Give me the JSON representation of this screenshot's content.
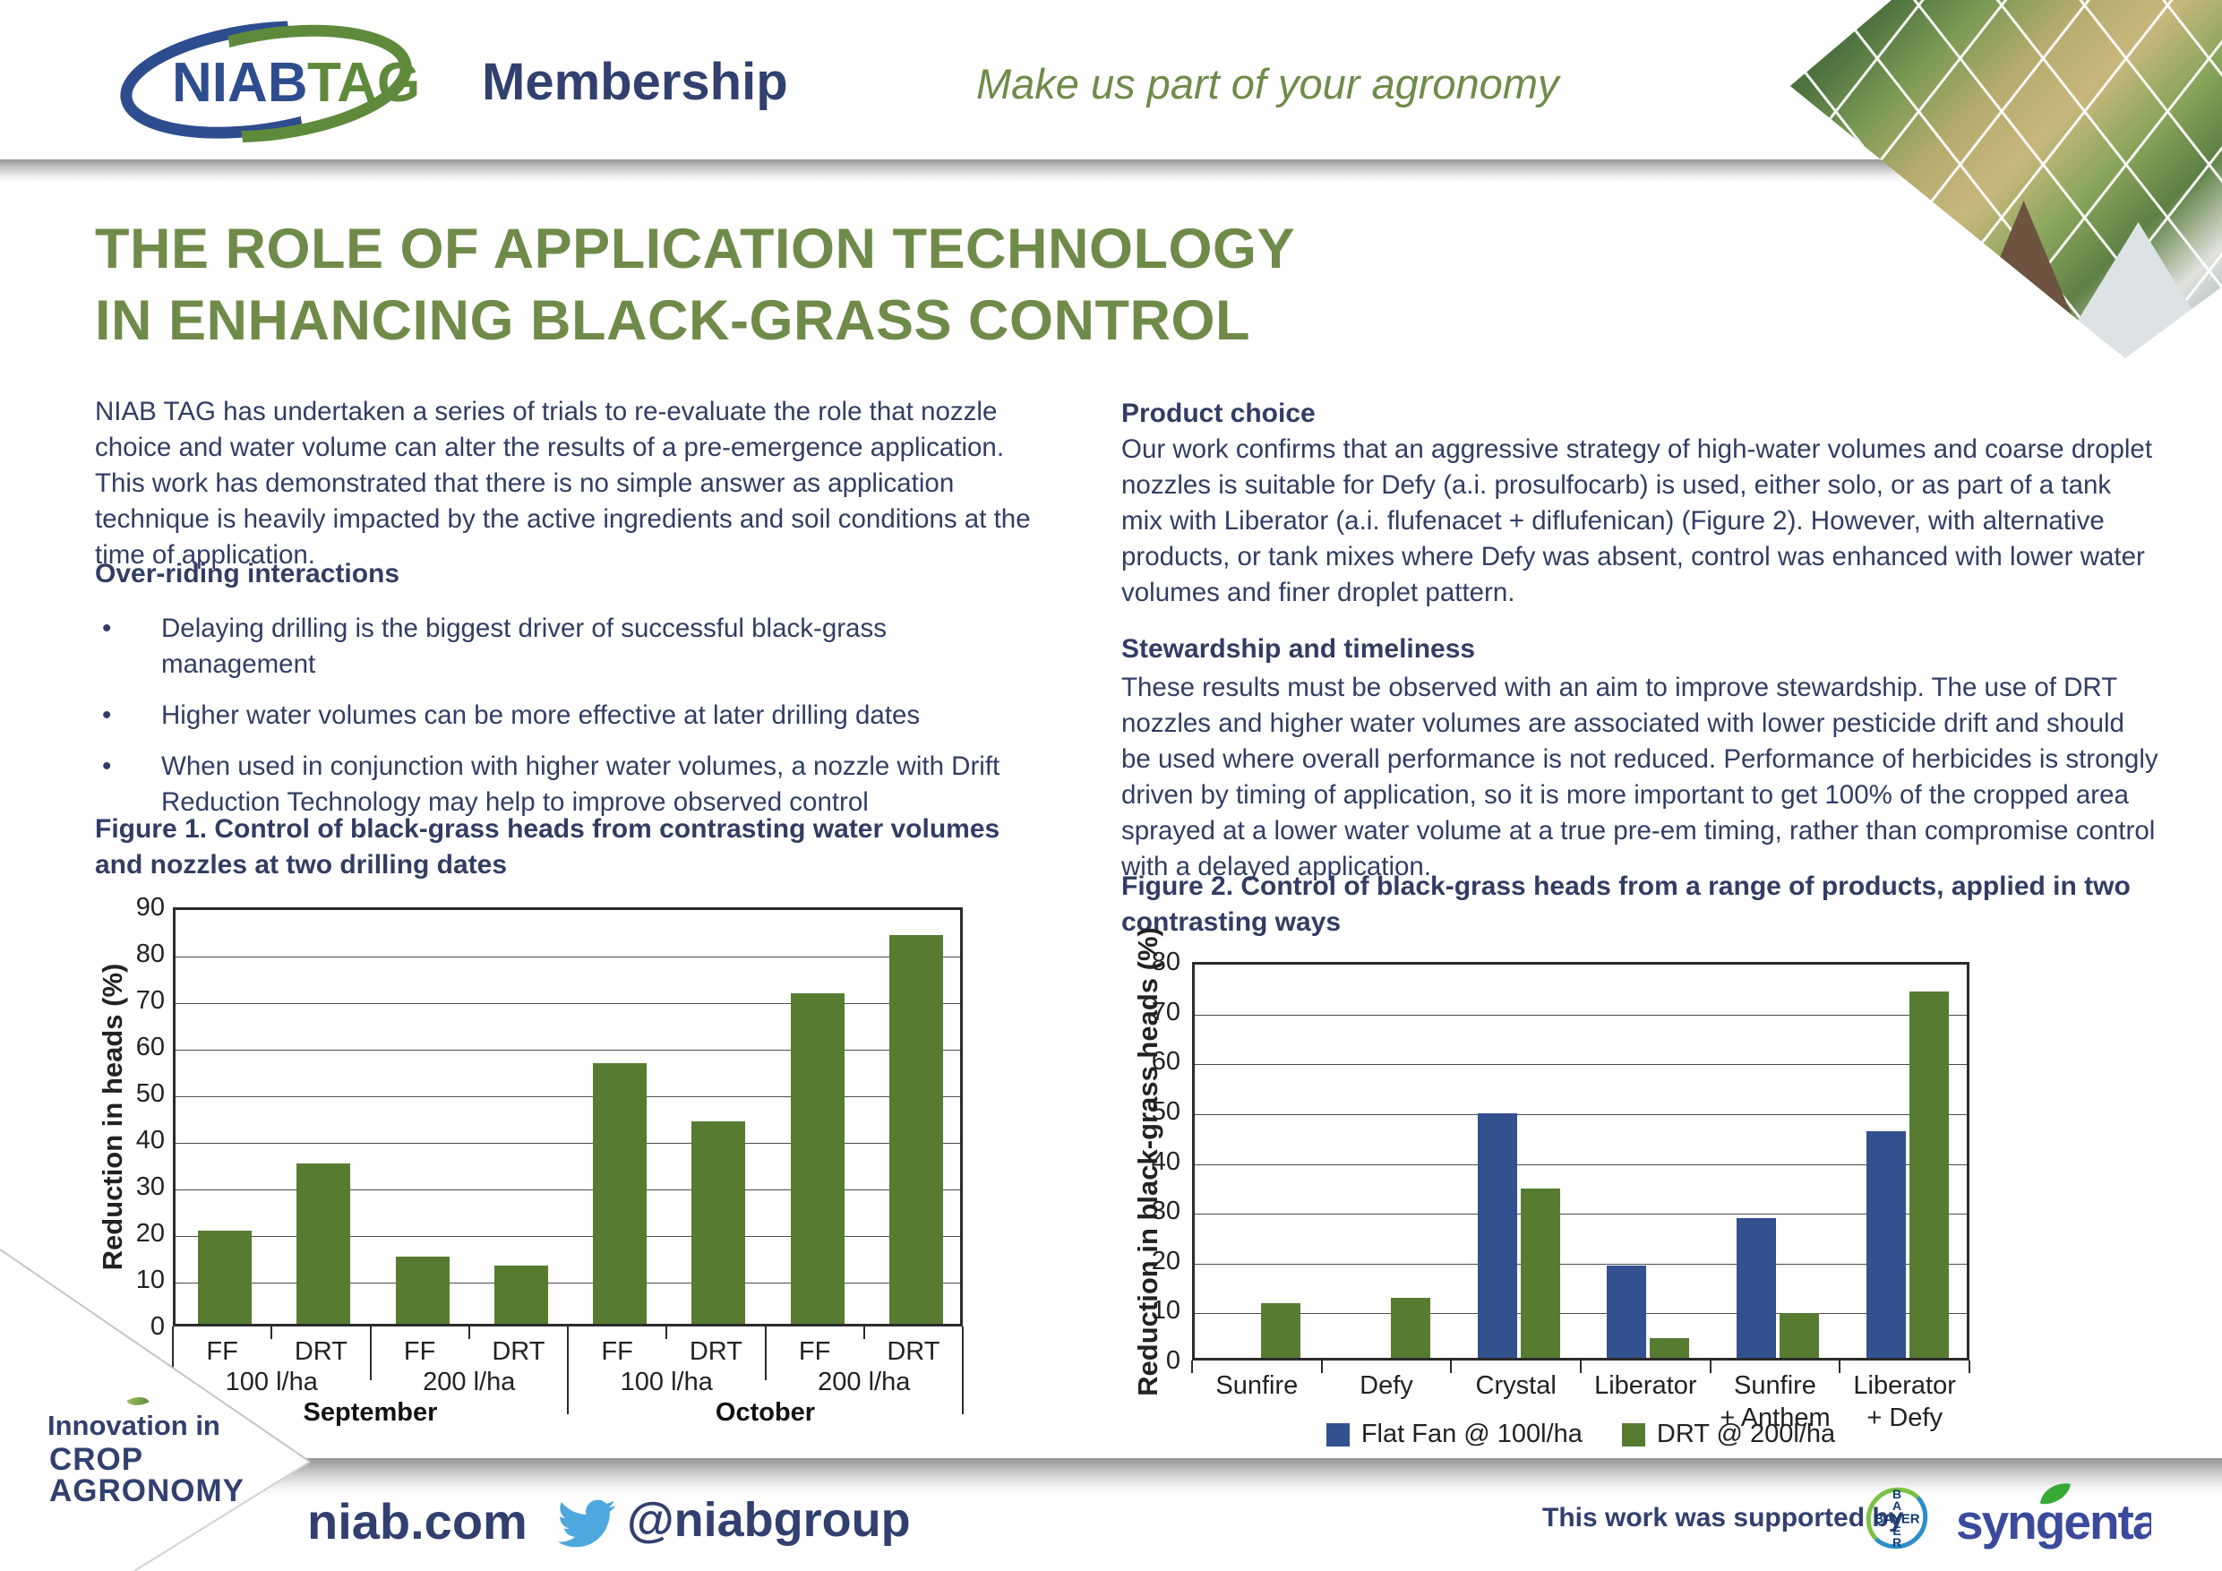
{
  "header": {
    "logo_niab": "NIAB",
    "logo_tag": "TAG",
    "membership": "Membership",
    "tagline": "Make us part of your agronomy"
  },
  "title": "THE ROLE OF APPLICATION TECHNOLOGY\nIN ENHANCING BLACK-GRASS CONTROL",
  "left_column": {
    "intro": "NIAB TAG has undertaken a series of trials to re-evaluate the role that nozzle choice and water volume can alter the results of a pre-emergence application. This work has demonstrated that there is no simple answer as application technique is heavily impacted by the active ingredients and soil conditions at the time of application.",
    "interactions_heading": "Over-riding interactions",
    "bullet_glyph": "•",
    "bullets": [
      "Delaying drilling is the biggest driver of successful black-grass management",
      "Higher water volumes can be more effective at later drilling dates",
      "When used in conjunction with higher water volumes, a nozzle with Drift Reduction Technology may help to improve observed control"
    ],
    "figure1_caption": "Figure 1. Control of black-grass heads from contrasting water volumes\nand nozzles at two drilling dates"
  },
  "right_column": {
    "product_heading": "Product choice",
    "product_text": "Our work confirms that an aggressive strategy of high-water volumes and coarse droplet nozzles is suitable for Defy (a.i. prosulfocarb) is used, either solo, or as part of a tank mix with Liberator (a.i. flufenacet + diflufenican) (Figure 2). However, with alternative products, or tank mixes where Defy was absent, control was enhanced with lower water volumes and finer droplet pattern.",
    "stewardship_heading": "Stewardship and timeliness",
    "stewardship_text": "These results must be observed with an aim to improve stewardship. The use of DRT nozzles and higher water volumes are associated with lower pesticide drift and should be used where overall performance is not reduced. Performance of herbicides is strongly driven by timing of application, so it is more important to get 100% of the cropped area sprayed at a lower water volume at a true pre-em timing, rather than compromise control with a delayed application.",
    "figure2_caption": "Figure 2. Control of black-grass heads from a range of products, applied in two\ncontrasting ways"
  },
  "chart_data": [
    {
      "type": "bar",
      "title": "Figure 1. Control of black-grass heads from contrasting water volumes and nozzles at two drilling dates",
      "ylabel": "Reduction in heads (%)",
      "ylim": [
        0,
        90
      ],
      "ytick_step": 10,
      "grid": true,
      "bar_color": "#587B32",
      "months": [
        {
          "label": "September",
          "volumes": [
            {
              "label": "100 l/ha",
              "bars": [
                {
                  "label": "FF",
                  "value": 20
                },
                {
                  "label": "DRT",
                  "value": 34.5
                }
              ]
            },
            {
              "label": "200 l/ha",
              "bars": [
                {
                  "label": "FF",
                  "value": 14.5
                },
                {
                  "label": "DRT",
                  "value": 12.5
                }
              ]
            }
          ]
        },
        {
          "label": "October",
          "volumes": [
            {
              "label": "100 l/ha",
              "bars": [
                {
                  "label": "FF",
                  "value": 56
                },
                {
                  "label": "DRT",
                  "value": 43.5
                }
              ]
            },
            {
              "label": "200 l/ha",
              "bars": [
                {
                  "label": "FF",
                  "value": 71
                },
                {
                  "label": "DRT",
                  "value": 83.5
                }
              ]
            }
          ]
        }
      ]
    },
    {
      "type": "bar",
      "title": "Figure 2. Control of black-grass heads from a range of products, applied in two contrasting ways",
      "ylabel": "Reduction in black-grass heads (%)",
      "ylim": [
        0,
        80
      ],
      "ytick_step": 10,
      "grid": true,
      "legend_position": "bottom",
      "categories": [
        "Sunfire",
        "Defy",
        "Crystal",
        "Liberator",
        "Sunfire\n+ Anthem",
        "Liberator\n+ Defy"
      ],
      "series": [
        {
          "name": "Flat Fan @ 100l/ha",
          "color": "#33508F",
          "values": [
            0,
            0,
            49,
            18.5,
            28,
            45.5
          ]
        },
        {
          "name": "DRT @ 200l/ha",
          "color": "#587B32",
          "values": [
            11,
            12,
            34,
            4,
            9,
            73.5
          ]
        }
      ]
    }
  ],
  "footer": {
    "innovation": "Innovation in",
    "crop": "CROP",
    "agronomy": "AGRONOMY",
    "website": "niab.com",
    "twitter_handle": "@niabgroup",
    "supported_by": "This work was supported by",
    "bayer": "BAYER",
    "syngenta": "syngenta"
  },
  "colors": {
    "title_green": "#6F8B4A",
    "navy_text": "#313D63",
    "bar_green": "#587B32",
    "bar_blue": "#33508F",
    "twitter_blue": "#4FA8DE",
    "syngenta_indigo": "#3B4A9C",
    "bayer_green": "#7AC143",
    "bayer_blue": "#2C8EC9"
  }
}
